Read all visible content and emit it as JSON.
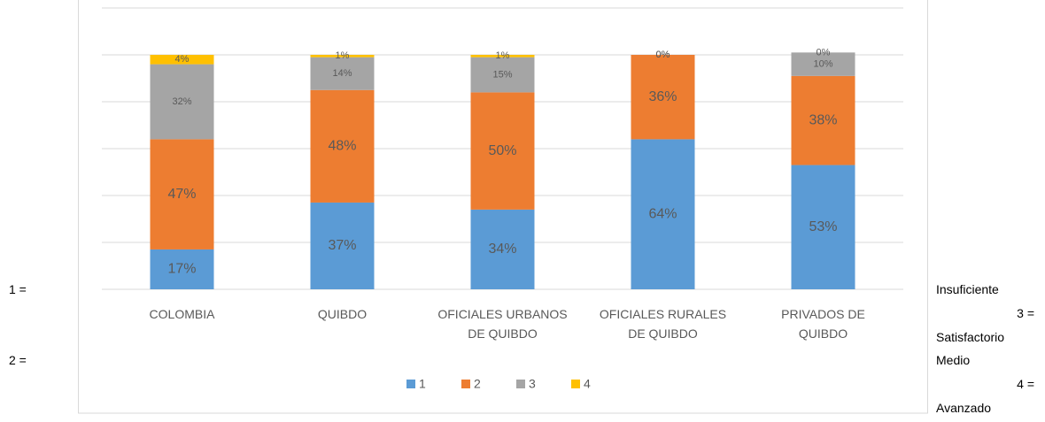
{
  "chart_data": {
    "type": "stacked_bar",
    "categories": [
      "COLOMBIA",
      "QUIBDO",
      "OFICIALES URBANOS\nDE QUIBDO",
      "OFICIALES RURALES\nDE QUIBDO",
      "PRIVADOS DE\nQUIBDO"
    ],
    "series": [
      {
        "name": "1",
        "color": "#5b9bd5",
        "values": [
          17,
          37,
          34,
          64,
          53
        ],
        "value_labels": [
          "17%",
          "37%",
          "34%",
          "64%",
          "53%"
        ]
      },
      {
        "name": "2",
        "color": "#ed7d31",
        "values": [
          47,
          48,
          50,
          36,
          38
        ],
        "value_labels": [
          "47%",
          "48%",
          "50%",
          "36%",
          "38%"
        ]
      },
      {
        "name": "3",
        "color": "#a5a5a5",
        "values": [
          32,
          14,
          15,
          0,
          10
        ],
        "value_labels": [
          "32%",
          "14%",
          "15%",
          "0%",
          "10%"
        ]
      },
      {
        "name": "4",
        "color": "#ffc000",
        "values": [
          4,
          1,
          1,
          0,
          0
        ],
        "value_labels": [
          "4%",
          "1%",
          "1%",
          "0%",
          "0%"
        ]
      }
    ],
    "ylim": [
      0,
      120
    ],
    "yticks": [
      0,
      20,
      40,
      60,
      80,
      100,
      120
    ],
    "grid": true,
    "legend": "bottom"
  },
  "left_notes": [
    "1 =",
    "2 ="
  ],
  "right_notes": [
    "Insuficiente",
    "3 =",
    "Satisfactorio",
    "Medio",
    "4 =",
    "Avanzado"
  ]
}
